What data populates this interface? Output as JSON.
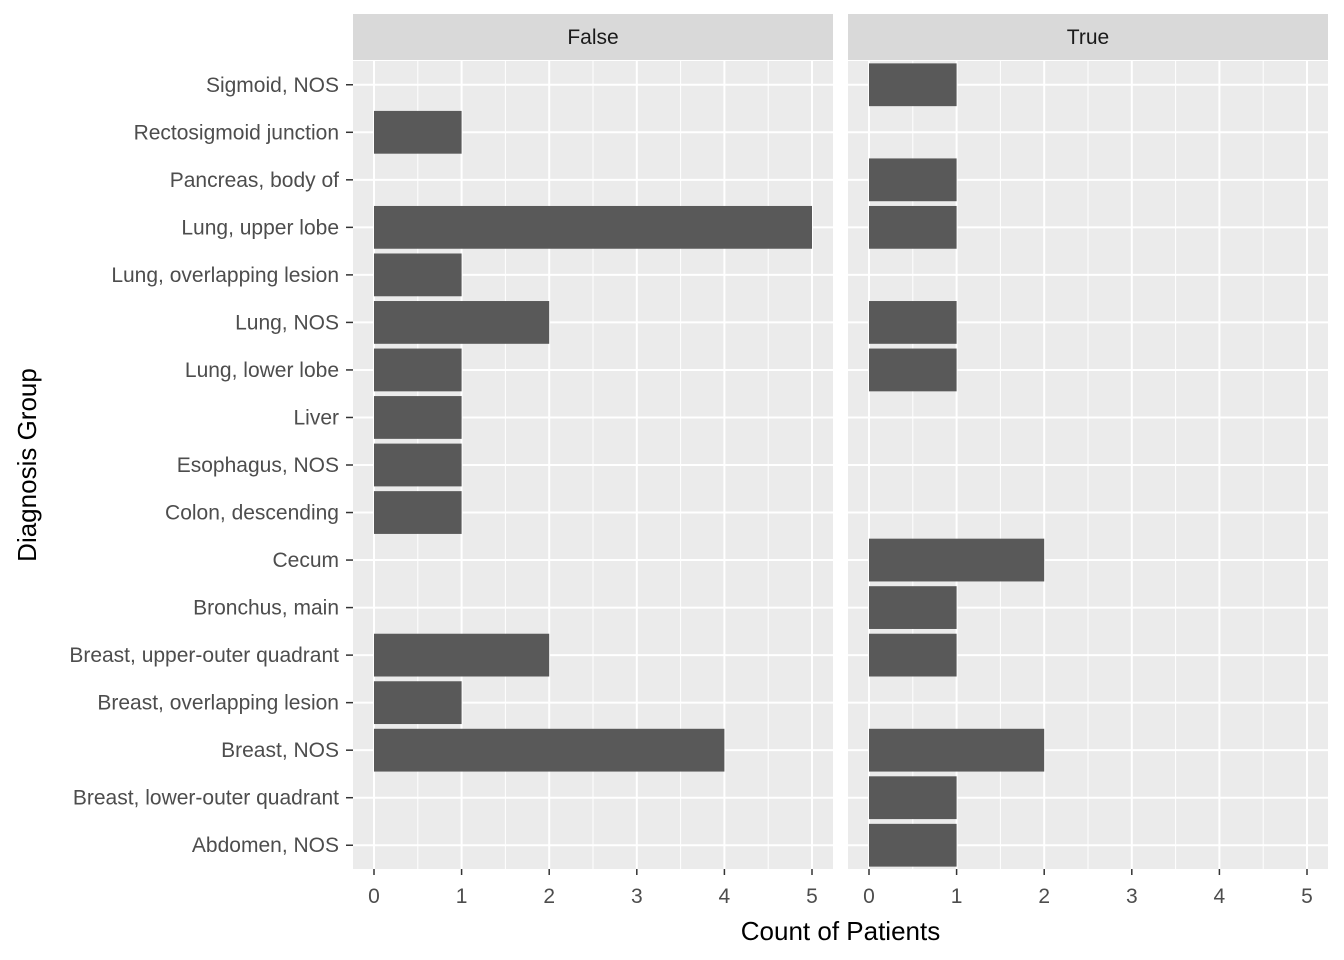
{
  "chart_data": {
    "type": "bar",
    "orientation": "horizontal",
    "facet_by": "",
    "xlabel": "Count of Patients",
    "ylabel": "Diagnosis Group",
    "xlim": [
      0,
      5
    ],
    "x_ticks": [
      0,
      1,
      2,
      3,
      4,
      5
    ],
    "grid": true,
    "categories": [
      "Abdomen, NOS",
      "Breast, lower-outer quadrant",
      "Breast, NOS",
      "Breast, overlapping lesion",
      "Breast, upper-outer quadrant",
      "Bronchus, main",
      "Cecum",
      "Colon, descending",
      "Esophagus, NOS",
      "Liver",
      "Lung, lower lobe",
      "Lung, NOS",
      "Lung, overlapping lesion",
      "Lung, upper lobe",
      "Pancreas, body of",
      "Rectosigmoid junction",
      "Sigmoid, NOS"
    ],
    "panels": [
      {
        "label": "False",
        "values": [
          0,
          0,
          4,
          1,
          2,
          0,
          0,
          1,
          1,
          1,
          1,
          2,
          1,
          5,
          0,
          1,
          0
        ]
      },
      {
        "label": "True",
        "values": [
          1,
          1,
          2,
          0,
          1,
          1,
          2,
          0,
          0,
          0,
          1,
          1,
          0,
          1,
          1,
          0,
          1
        ]
      }
    ],
    "colors": {
      "bar": "#595959",
      "panel_background": "#ebebeb",
      "grid": "#ffffff",
      "strip_background": "#d9d9d9"
    }
  }
}
